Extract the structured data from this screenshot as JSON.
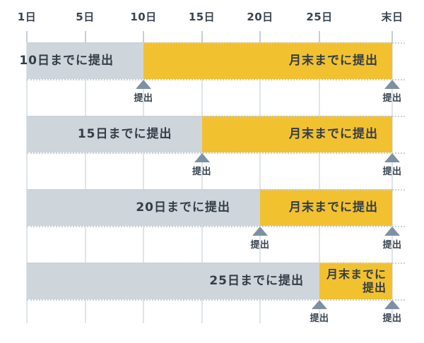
{
  "axis": {
    "ticks": [
      "1日",
      "5日",
      "10日",
      "15日",
      "20日",
      "25日",
      "末日"
    ]
  },
  "rows": [
    {
      "left_label": "10日までに提出",
      "deadline": "10日",
      "right_label_lines": [
        "月末までに提出"
      ],
      "deadline_marker": "提出",
      "end_marker": "提出"
    },
    {
      "left_label": "15日までに提出",
      "deadline": "15日",
      "right_label_lines": [
        "月末までに提出"
      ],
      "deadline_marker": "提出",
      "end_marker": "提出"
    },
    {
      "left_label": "20日までに提出",
      "deadline": "20日",
      "right_label_lines": [
        "月末までに提出"
      ],
      "deadline_marker": "提出",
      "end_marker": "提出"
    },
    {
      "left_label": "25日までに提出",
      "deadline": "25日",
      "right_label_lines": [
        "月末までに",
        "提出"
      ],
      "deadline_marker": "提出",
      "end_marker": "提出"
    }
  ],
  "colors": {
    "gray_bar": "#CED5DB",
    "yellow_bar": "#F2C130",
    "triangle": "#7E91A3",
    "dark_text": "#333E48",
    "grid_line": "#DFE5EA",
    "tick_mark": "#C6CED6",
    "dotted_line": "#C9D1D8"
  },
  "chart_data": {
    "type": "gantt",
    "title": "",
    "x_unit": "day of month",
    "x_ticks": [
      "1日",
      "5日",
      "10日",
      "15日",
      "20日",
      "25日",
      "末日"
    ],
    "rows": [
      {
        "segments": [
          {
            "label": "10日までに提出",
            "start": "1日",
            "end": "10日",
            "color": "gray"
          },
          {
            "label": "月末までに提出",
            "start": "10日",
            "end": "末日",
            "color": "yellow"
          }
        ],
        "submission_points": [
          "10日",
          "末日"
        ]
      },
      {
        "segments": [
          {
            "label": "15日までに提出",
            "start": "1日",
            "end": "15日",
            "color": "gray"
          },
          {
            "label": "月末までに提出",
            "start": "15日",
            "end": "末日",
            "color": "yellow"
          }
        ],
        "submission_points": [
          "15日",
          "末日"
        ]
      },
      {
        "segments": [
          {
            "label": "20日までに提出",
            "start": "1日",
            "end": "20日",
            "color": "gray"
          },
          {
            "label": "月末までに提出",
            "start": "20日",
            "end": "末日",
            "color": "yellow"
          }
        ],
        "submission_points": [
          "20日",
          "末日"
        ]
      },
      {
        "segments": [
          {
            "label": "25日までに提出",
            "start": "1日",
            "end": "25日",
            "color": "gray"
          },
          {
            "label": "月末までに提出",
            "start": "25日",
            "end": "末日",
            "color": "yellow"
          }
        ],
        "submission_points": [
          "25日",
          "末日"
        ]
      }
    ]
  }
}
